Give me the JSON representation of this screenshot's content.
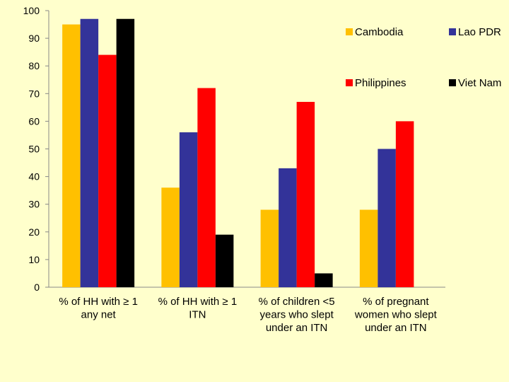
{
  "chart_data": {
    "type": "bar",
    "categories": [
      [
        "% of HH with ≥ 1",
        "any net"
      ],
      [
        "% of HH with ≥ 1",
        "ITN"
      ],
      [
        "% of children <5",
        "years who slept",
        "under an ITN"
      ],
      [
        "% of pregnant",
        "women who slept",
        "under an ITN"
      ]
    ],
    "series": [
      {
        "name": "Cambodia",
        "color": "#ffc000",
        "values": [
          95,
          36,
          28,
          28
        ]
      },
      {
        "name": "Lao PDR",
        "color": "#333399",
        "values": [
          97,
          56,
          43,
          50
        ]
      },
      {
        "name": "Philippines",
        "color": "#ff0000",
        "values": [
          84,
          72,
          67,
          60
        ]
      },
      {
        "name": "Viet Nam",
        "color": "#000000",
        "values": [
          97,
          19,
          5,
          null
        ]
      }
    ],
    "ylim": [
      0,
      100
    ],
    "yticks": [
      0,
      10,
      20,
      30,
      40,
      50,
      60,
      70,
      80,
      90,
      100
    ],
    "grid": false,
    "legend_position": "top-right"
  }
}
